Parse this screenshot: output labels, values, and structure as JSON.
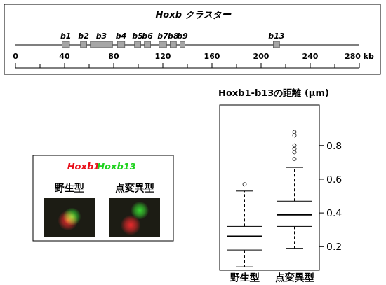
{
  "chart_data": [
    {
      "type": "gene_map",
      "title": "Hoxb クラスター",
      "genes": [
        {
          "name": "b1",
          "start": 38,
          "end": 44
        },
        {
          "name": "b2",
          "start": 53,
          "end": 58
        },
        {
          "name": "b3",
          "start": 61,
          "end": 79
        },
        {
          "name": "b4",
          "start": 83,
          "end": 89
        },
        {
          "name": "b5",
          "start": 97,
          "end": 102
        },
        {
          "name": "b6",
          "start": 105,
          "end": 110
        },
        {
          "name": "b7",
          "start": 117,
          "end": 123
        },
        {
          "name": "b8",
          "start": 126,
          "end": 131
        },
        {
          "name": "b9",
          "start": 134,
          "end": 138
        },
        {
          "name": "b13",
          "start": 210,
          "end": 215
        }
      ],
      "xlim": [
        0,
        280
      ],
      "xticks": [
        0,
        40,
        80,
        120,
        160,
        200,
        240,
        {
          "value": 280,
          "label": "280 kb"
        }
      ],
      "minor_xticks": [
        20,
        60,
        100,
        140,
        180,
        220,
        260
      ]
    },
    {
      "type": "image",
      "series": [
        {
          "name": "Hoxb1",
          "color": "#e8101a"
        },
        {
          "name": "Hoxb13",
          "color": "#1fd21f"
        }
      ],
      "categories": [
        "野生型",
        "点変異型"
      ]
    },
    {
      "type": "box",
      "title": "Hoxb1-b13の距離 (μm)",
      "categories": [
        "野生型",
        "点変異型"
      ],
      "boxes": [
        {
          "min": 0.08,
          "q1": 0.18,
          "median": 0.26,
          "q3": 0.32,
          "max": 0.53,
          "outliers": [
            0.57
          ]
        },
        {
          "min": 0.19,
          "q1": 0.32,
          "median": 0.39,
          "q3": 0.47,
          "max": 0.67,
          "outliers": [
            0.72,
            0.76,
            0.78,
            0.8,
            0.86,
            0.88
          ]
        }
      ],
      "ylim": [
        0.06,
        1.04
      ],
      "yticks": [
        0.2,
        0.4,
        0.6,
        0.8
      ],
      "marker": "circle",
      "line_style": "dashed"
    }
  ]
}
